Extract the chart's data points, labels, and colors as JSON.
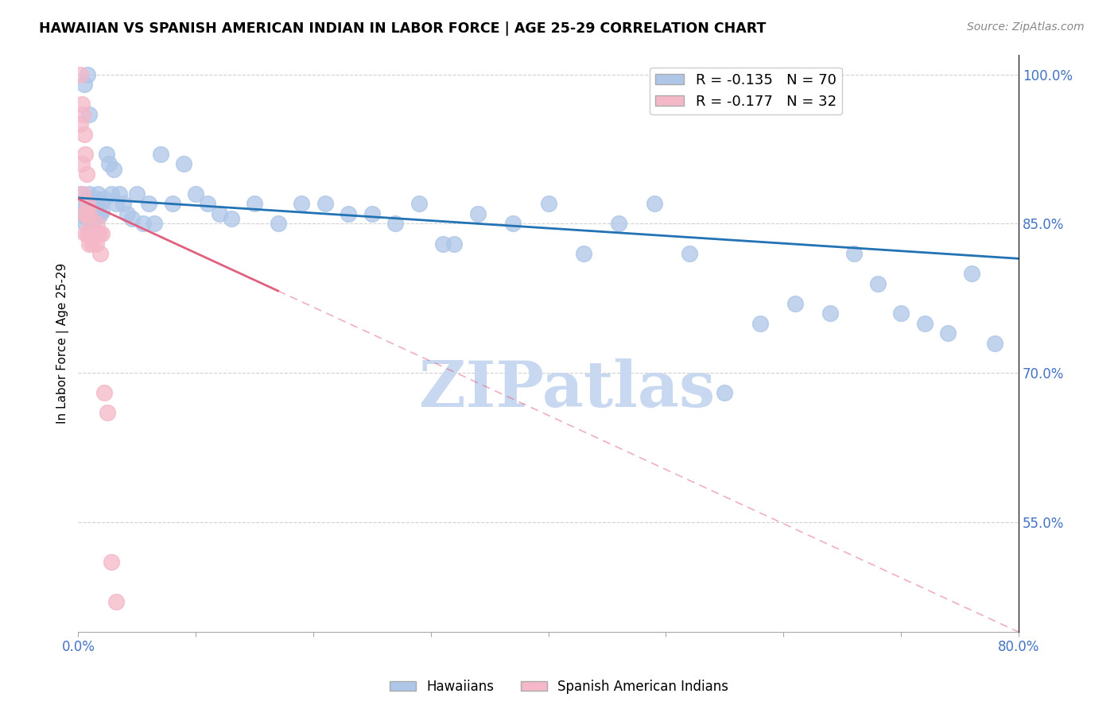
{
  "title": "HAWAIIAN VS SPANISH AMERICAN INDIAN IN LABOR FORCE | AGE 25-29 CORRELATION CHART",
  "source": "Source: ZipAtlas.com",
  "ylabel": "In Labor Force | Age 25-29",
  "xlim": [
    0.0,
    0.8
  ],
  "ylim": [
    0.44,
    1.02
  ],
  "hawaiian_R": -0.135,
  "hawaiian_N": 70,
  "spanish_R": -0.177,
  "spanish_N": 32,
  "hawaiian_color": "#aec6e8",
  "hawaiian_line_color": "#2272b4",
  "spanish_color": "#f4b8c8",
  "spanish_line_color": "#e06080",
  "watermark": "ZIPatlas",
  "watermark_color": "#c8d8f0",
  "hawaiian_x": [
    0.002,
    0.003,
    0.004,
    0.005,
    0.006,
    0.007,
    0.008,
    0.009,
    0.01,
    0.011,
    0.012,
    0.013,
    0.014,
    0.015,
    0.016,
    0.017,
    0.018,
    0.019,
    0.02,
    0.022,
    0.024,
    0.026,
    0.028,
    0.03,
    0.032,
    0.035,
    0.038,
    0.042,
    0.046,
    0.05,
    0.055,
    0.06,
    0.065,
    0.07,
    0.08,
    0.09,
    0.1,
    0.11,
    0.12,
    0.13,
    0.15,
    0.17,
    0.19,
    0.21,
    0.23,
    0.25,
    0.27,
    0.29,
    0.31,
    0.34,
    0.37,
    0.4,
    0.43,
    0.46,
    0.49,
    0.52,
    0.55,
    0.58,
    0.61,
    0.64,
    0.66,
    0.68,
    0.7,
    0.72,
    0.74,
    0.76,
    0.78,
    0.008,
    0.009,
    0.32
  ],
  "hawaiian_y": [
    0.88,
    0.86,
    0.865,
    0.99,
    0.85,
    0.87,
    0.855,
    0.88,
    0.86,
    0.875,
    0.87,
    0.865,
    0.855,
    0.875,
    0.86,
    0.88,
    0.858,
    0.87,
    0.862,
    0.875,
    0.92,
    0.91,
    0.88,
    0.905,
    0.87,
    0.88,
    0.87,
    0.86,
    0.855,
    0.88,
    0.85,
    0.87,
    0.85,
    0.92,
    0.87,
    0.91,
    0.88,
    0.87,
    0.86,
    0.855,
    0.87,
    0.85,
    0.87,
    0.87,
    0.86,
    0.86,
    0.85,
    0.87,
    0.83,
    0.86,
    0.85,
    0.87,
    0.82,
    0.85,
    0.87,
    0.82,
    0.68,
    0.75,
    0.77,
    0.76,
    0.82,
    0.79,
    0.76,
    0.75,
    0.74,
    0.8,
    0.73,
    1.0,
    0.96,
    0.83
  ],
  "spanish_x": [
    0.002,
    0.002,
    0.003,
    0.003,
    0.004,
    0.004,
    0.005,
    0.005,
    0.006,
    0.006,
    0.007,
    0.007,
    0.008,
    0.008,
    0.009,
    0.009,
    0.01,
    0.01,
    0.011,
    0.012,
    0.013,
    0.014,
    0.015,
    0.016,
    0.017,
    0.018,
    0.019,
    0.02,
    0.022,
    0.025,
    0.028,
    0.032
  ],
  "spanish_y": [
    1.0,
    0.95,
    0.97,
    0.91,
    0.96,
    0.88,
    0.94,
    0.86,
    0.92,
    0.84,
    0.9,
    0.86,
    0.87,
    0.84,
    0.86,
    0.83,
    0.85,
    0.84,
    0.84,
    0.83,
    0.84,
    0.84,
    0.83,
    0.85,
    0.84,
    0.84,
    0.82,
    0.84,
    0.68,
    0.66,
    0.51,
    0.47
  ]
}
